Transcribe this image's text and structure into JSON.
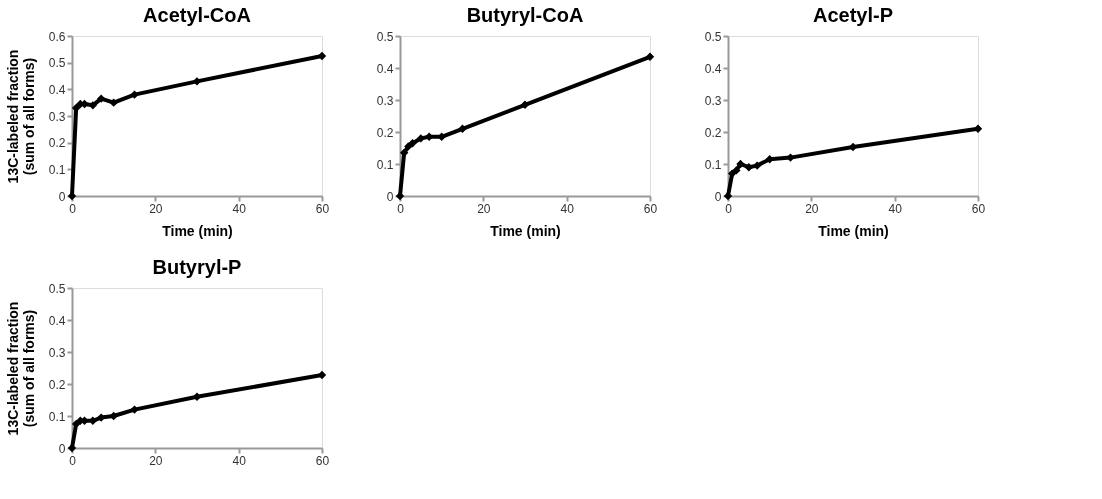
{
  "chart_data": [
    {
      "type": "line",
      "title": "Acetyl-CoA",
      "xlabel": "Time (min)",
      "ylabel": "13C-labeled fraction\n(sum of all forms)",
      "x": [
        0,
        1,
        2,
        3,
        5,
        7,
        10,
        15,
        30,
        60
      ],
      "xlim": [
        0,
        60
      ],
      "xticks": [
        0,
        20,
        40,
        60
      ],
      "ylim": [
        0,
        0.6
      ],
      "yticks": [
        0,
        0.1,
        0.2,
        0.3,
        0.4,
        0.5,
        0.6
      ],
      "marker": "diamond",
      "line_style": "solid",
      "grid": false,
      "legend": false,
      "series": [
        {
          "color": "#000000",
          "values": [
            0,
            0.33,
            0.345,
            0.345,
            0.34,
            0.365,
            0.35,
            0.38,
            0.43,
            0.525
          ]
        }
      ]
    },
    {
      "type": "line",
      "title": "Butyryl-CoA",
      "xlabel": "Time (min)",
      "x": [
        0,
        1,
        2,
        3,
        5,
        7,
        10,
        15,
        30,
        60
      ],
      "xlim": [
        0,
        60
      ],
      "xticks": [
        0,
        20,
        40,
        60
      ],
      "ylim": [
        0,
        0.5
      ],
      "yticks": [
        0,
        0.1,
        0.2,
        0.3,
        0.4,
        0.5
      ],
      "marker": "diamond",
      "line_style": "solid",
      "grid": false,
      "legend": false,
      "series": [
        {
          "color": "#000000",
          "values": [
            0,
            0.135,
            0.155,
            0.165,
            0.18,
            0.185,
            0.185,
            0.21,
            0.285,
            0.435
          ]
        }
      ]
    },
    {
      "type": "line",
      "title": "Acetyl-P",
      "xlabel": "Time (min)",
      "x": [
        0,
        1,
        2,
        3,
        5,
        7,
        10,
        15,
        30,
        60
      ],
      "xlim": [
        0,
        60
      ],
      "xticks": [
        0,
        20,
        40,
        60
      ],
      "ylim": [
        0,
        0.5
      ],
      "yticks": [
        0,
        0.1,
        0.2,
        0.3,
        0.4,
        0.5
      ],
      "marker": "diamond",
      "line_style": "solid",
      "grid": false,
      "legend": false,
      "series": [
        {
          "color": "#000000",
          "values": [
            0,
            0.07,
            0.08,
            0.1,
            0.09,
            0.095,
            0.115,
            0.12,
            0.153,
            0.21
          ]
        }
      ]
    },
    {
      "type": "line",
      "title": "Butyryl-P",
      "ylabel": "13C-labeled fraction\n(sum of all forms)",
      "x": [
        0,
        1,
        2,
        3,
        5,
        7,
        10,
        15,
        30,
        60
      ],
      "xlim": [
        0,
        60
      ],
      "xticks": [
        0,
        20,
        40,
        60
      ],
      "ylim": [
        0,
        0.5
      ],
      "yticks": [
        0,
        0.1,
        0.2,
        0.3,
        0.4,
        0.5
      ],
      "marker": "diamond",
      "line_style": "solid",
      "grid": false,
      "legend": false,
      "series": [
        {
          "color": "#000000",
          "values": [
            0,
            0.075,
            0.085,
            0.085,
            0.085,
            0.095,
            0.1,
            0.12,
            0.16,
            0.228
          ]
        }
      ]
    }
  ]
}
